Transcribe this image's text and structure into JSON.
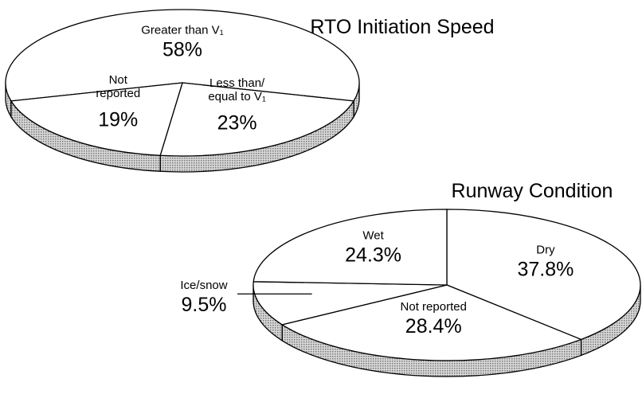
{
  "chart_data": [
    {
      "type": "pie",
      "title": "RTO Initiation Speed",
      "categories": [
        "Greater than V₁",
        "Less than/\nequal to V₁",
        "Not\nreported"
      ],
      "values": [
        58,
        23,
        19
      ],
      "value_labels": [
        "58%",
        "23%",
        "19%"
      ]
    },
    {
      "type": "pie",
      "title": "Runway Condition",
      "categories": [
        "Dry",
        "Not reported",
        "Ice/snow",
        "Wet"
      ],
      "values": [
        37.8,
        28.4,
        9.5,
        24.3
      ],
      "value_labels": [
        "37.8%",
        "28.4%",
        "9.5%",
        "24.3%"
      ]
    }
  ]
}
